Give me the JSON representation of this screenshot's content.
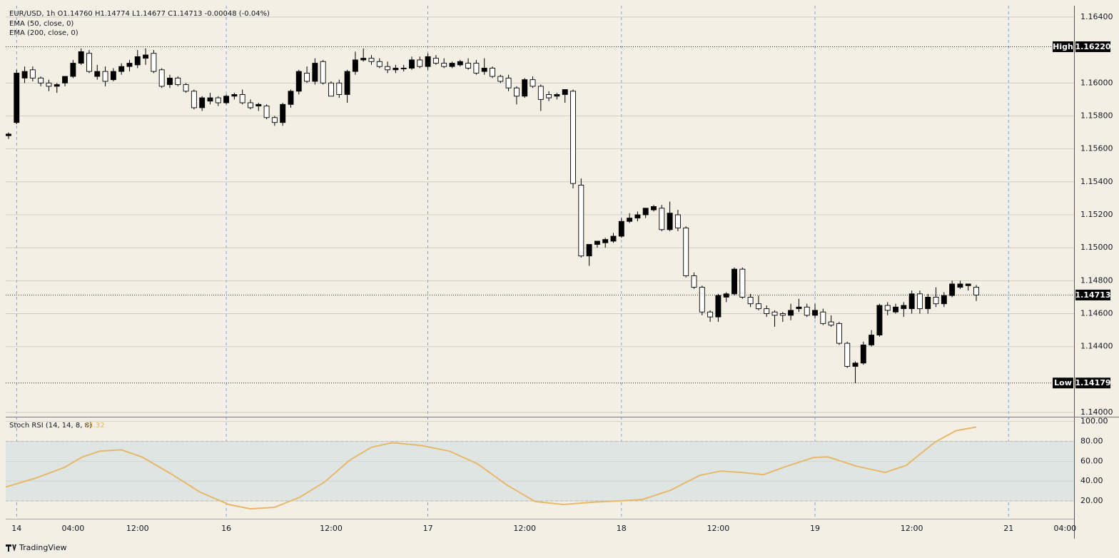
{
  "header": {
    "symbol_line": "EUR/USD, 1h  O1.14760  H1.14774  L1.14677  C1.14713  -0.00048 (-0.04%)",
    "indicators": [
      "EMA (50, close, 0)",
      "EMA (200, close, 0)"
    ]
  },
  "chart_data": [
    {
      "type": "candlestick",
      "open": [
        1.1568,
        1.1576,
        1.1603,
        1.1608,
        1.1603,
        1.16,
        1.1598,
        1.16,
        1.1604,
        1.1612,
        1.1618,
        1.1604,
        1.1607,
        1.1602,
        1.1607,
        1.161,
        1.1611,
        1.1615,
        1.1618,
        1.1608,
        1.1599,
        1.1603,
        1.1599,
        1.1595,
        1.1585,
        1.1589,
        1.1591,
        1.1588,
        1.1592,
        1.1593,
        1.1588,
        1.1586,
        1.1586,
        1.1579,
        1.1576,
        1.1587,
        1.1595,
        1.1606,
        1.1601,
        1.1613,
        1.16,
        1.16,
        1.1593,
        1.1607,
        1.1614,
        1.1615,
        1.1613,
        1.161,
        1.1608,
        1.1609,
        1.1609,
        1.1614,
        1.161,
        1.1615,
        1.1612,
        1.161,
        1.1611,
        1.1612,
        1.1612,
        1.1607,
        1.1609,
        1.1604,
        1.1603,
        1.1597,
        1.1592,
        1.1602,
        1.1598,
        1.1593,
        1.1592,
        1.1593,
        1.1595,
        1.1538,
        1.1495,
        1.1502,
        1.1503,
        1.1504,
        1.1507,
        1.1516,
        1.1518,
        1.152,
        1.1523,
        1.1524,
        1.1511,
        1.152,
        1.1512,
        1.1483,
        1.1476,
        1.1461,
        1.1458,
        1.147,
        1.1472,
        1.1487,
        1.147,
        1.1466,
        1.1463,
        1.1461,
        1.146,
        1.1459,
        1.1463,
        1.1464,
        1.1459,
        1.1461,
        1.1455,
        1.1454,
        1.1442,
        1.1428,
        1.143,
        1.1441,
        1.1447,
        1.1465,
        1.1461,
        1.1463,
        1.1463,
        1.1472,
        1.1463,
        1.147,
        1.1466,
        1.1471,
        1.1476,
        1.1477,
        1.1476
      ],
      "high": [
        1.157,
        1.1608,
        1.161,
        1.161,
        1.1604,
        1.1602,
        1.16,
        1.1603,
        1.1614,
        1.1621,
        1.162,
        1.1611,
        1.161,
        1.1609,
        1.1612,
        1.1614,
        1.162,
        1.1621,
        1.162,
        1.1609,
        1.1605,
        1.1604,
        1.16,
        1.1596,
        1.1592,
        1.1594,
        1.1592,
        1.1593,
        1.1594,
        1.1596,
        1.159,
        1.1588,
        1.1587,
        1.158,
        1.1588,
        1.1596,
        1.1608,
        1.161,
        1.1615,
        1.1614,
        1.1601,
        1.1602,
        1.1608,
        1.1619,
        1.1621,
        1.1617,
        1.1615,
        1.1613,
        1.1611,
        1.1611,
        1.1616,
        1.1616,
        1.1618,
        1.1617,
        1.1615,
        1.1613,
        1.1614,
        1.1615,
        1.1614,
        1.1615,
        1.161,
        1.1605,
        1.1605,
        1.1598,
        1.1603,
        1.1604,
        1.1599,
        1.1595,
        1.1594,
        1.1596,
        1.1596,
        1.1542,
        1.1502,
        1.1504,
        1.1506,
        1.1509,
        1.1518,
        1.1521,
        1.1522,
        1.1524,
        1.1526,
        1.1526,
        1.1528,
        1.1523,
        1.1513,
        1.1485,
        1.1477,
        1.1462,
        1.1472,
        1.1473,
        1.1488,
        1.1488,
        1.1472,
        1.1471,
        1.1465,
        1.1462,
        1.1461,
        1.1466,
        1.1469,
        1.1466,
        1.1466,
        1.1463,
        1.1459,
        1.1455,
        1.1443,
        1.1431,
        1.1443,
        1.145,
        1.1466,
        1.1467,
        1.1466,
        1.1467,
        1.1474,
        1.1474,
        1.1472,
        1.1476,
        1.1473,
        1.148,
        1.148,
        1.1478,
        1.14774
      ],
      "low": [
        1.1566,
        1.1575,
        1.16,
        1.1601,
        1.1598,
        1.1595,
        1.1594,
        1.1598,
        1.1603,
        1.1611,
        1.1606,
        1.1602,
        1.1598,
        1.1601,
        1.1605,
        1.1607,
        1.1609,
        1.1611,
        1.1606,
        1.1597,
        1.1597,
        1.1598,
        1.1594,
        1.1584,
        1.1583,
        1.1587,
        1.1586,
        1.1587,
        1.159,
        1.1587,
        1.1584,
        1.1583,
        1.1578,
        1.1574,
        1.1574,
        1.1585,
        1.1593,
        1.16,
        1.1599,
        1.1599,
        1.1592,
        1.1591,
        1.1588,
        1.1605,
        1.1613,
        1.1611,
        1.1609,
        1.1606,
        1.1606,
        1.1607,
        1.1608,
        1.1609,
        1.1608,
        1.1611,
        1.1609,
        1.1609,
        1.161,
        1.1608,
        1.1605,
        1.1605,
        1.1603,
        1.16,
        1.1595,
        1.1587,
        1.1591,
        1.1597,
        1.1583,
        1.1589,
        1.159,
        1.1588,
        1.1536,
        1.1494,
        1.1489,
        1.15,
        1.15,
        1.1503,
        1.1506,
        1.1515,
        1.1516,
        1.1518,
        1.1522,
        1.151,
        1.151,
        1.151,
        1.1482,
        1.1475,
        1.1459,
        1.1455,
        1.1455,
        1.1467,
        1.1471,
        1.1469,
        1.1464,
        1.1462,
        1.1458,
        1.1452,
        1.1455,
        1.1456,
        1.1461,
        1.1458,
        1.1457,
        1.1453,
        1.1452,
        1.1441,
        1.1427,
        1.14179,
        1.1429,
        1.144,
        1.1446,
        1.1459,
        1.146,
        1.1458,
        1.146,
        1.146,
        1.146,
        1.1464,
        1.1464,
        1.147,
        1.1475,
        1.1474,
        1.14677
      ],
      "close": [
        1.1569,
        1.1606,
        1.1607,
        1.1603,
        1.16,
        1.1598,
        1.1599,
        1.1604,
        1.1612,
        1.1619,
        1.1607,
        1.1607,
        1.1601,
        1.1607,
        1.161,
        1.1612,
        1.1616,
        1.1617,
        1.1607,
        1.1598,
        1.1603,
        1.1599,
        1.1595,
        1.1585,
        1.1591,
        1.1591,
        1.1588,
        1.1592,
        1.1593,
        1.1588,
        1.1585,
        1.1587,
        1.1579,
        1.1576,
        1.1587,
        1.1595,
        1.1607,
        1.1601,
        1.1612,
        1.16,
        1.1592,
        1.1593,
        1.1607,
        1.1614,
        1.1615,
        1.1613,
        1.161,
        1.1608,
        1.1609,
        1.1609,
        1.1614,
        1.161,
        1.1616,
        1.1612,
        1.161,
        1.1612,
        1.1613,
        1.1609,
        1.1606,
        1.1609,
        1.1604,
        1.1601,
        1.1597,
        1.1592,
        1.1602,
        1.1598,
        1.159,
        1.1591,
        1.1593,
        1.1596,
        1.1539,
        1.1495,
        1.1502,
        1.1504,
        1.1505,
        1.1507,
        1.1516,
        1.1518,
        1.152,
        1.1524,
        1.1525,
        1.1511,
        1.1521,
        1.1512,
        1.1483,
        1.1476,
        1.1461,
        1.1458,
        1.1471,
        1.1472,
        1.1487,
        1.147,
        1.1466,
        1.1463,
        1.146,
        1.1459,
        1.1459,
        1.1462,
        1.1464,
        1.1459,
        1.1462,
        1.1454,
        1.1453,
        1.1442,
        1.1428,
        1.143,
        1.1441,
        1.1447,
        1.1465,
        1.1462,
        1.1464,
        1.1465,
        1.1472,
        1.1463,
        1.147,
        1.1466,
        1.1471,
        1.1478,
        1.1478,
        1.1478,
        1.14713
      ],
      "up_color": "#000000",
      "down_color": "#ffffff",
      "xlim": [
        -0.35,
        132.12
      ],
      "xticks": [
        {
          "value": 1,
          "label": "14"
        },
        {
          "value": 8,
          "label": "04:00"
        },
        {
          "value": 16,
          "label": "12:00"
        },
        {
          "value": 27,
          "label": "16"
        },
        {
          "value": 40,
          "label": "12:00"
        },
        {
          "value": 52,
          "label": "17"
        },
        {
          "value": 64,
          "label": "12:00"
        },
        {
          "value": 76,
          "label": "18"
        },
        {
          "value": 88,
          "label": "12:00"
        },
        {
          "value": 100,
          "label": "19"
        },
        {
          "value": 112,
          "label": "12:00"
        },
        {
          "value": 124,
          "label": "21"
        },
        {
          "value": 131,
          "label": "04:00"
        }
      ],
      "ylim": [
        1.13983,
        1.16469
      ],
      "yticks": [
        {
          "value": 1.164,
          "label": "1.16400"
        },
        {
          "value": 1.16,
          "label": "1.16000"
        },
        {
          "value": 1.158,
          "label": "1.15800"
        },
        {
          "value": 1.156,
          "label": "1.15600"
        },
        {
          "value": 1.154,
          "label": "1.15400"
        },
        {
          "value": 1.152,
          "label": "1.15200"
        },
        {
          "value": 1.15,
          "label": "1.15000"
        },
        {
          "value": 1.148,
          "label": "1.14800"
        },
        {
          "value": 1.146,
          "label": "1.14600"
        },
        {
          "value": 1.144,
          "label": "1.14400"
        },
        {
          "value": 1.14,
          "label": "1.14000"
        }
      ],
      "markers": [
        {
          "label": "High",
          "value": 1.1622,
          "value_label": "1.16220"
        },
        {
          "label": "Low",
          "value": 1.14179,
          "value_label": "1.14179"
        },
        {
          "value": 1.14713,
          "value_label": "1.14713"
        }
      ]
    },
    {
      "type": "line",
      "title": "Stoch RSI (14, 14, 8, 8)",
      "color": "#e6b86a",
      "x": [
        -0.35,
        3.4,
        6.9,
        9.1,
        11.3,
        14,
        16.6,
        20.2,
        23.7,
        27.3,
        30,
        33,
        36.1,
        39.2,
        42.3,
        45,
        47.6,
        51.2,
        54.7,
        58.2,
        61.8,
        65.3,
        68.8,
        72.4,
        75.9,
        78.6,
        82.1,
        85.7,
        88.3,
        91,
        93.6,
        96.3,
        99.8,
        101.6,
        105.1,
        108.7,
        111.3,
        114.9,
        117.5,
        120
      ],
      "values": [
        34,
        43,
        53.6,
        64,
        70,
        71.4,
        64,
        47,
        29,
        16.4,
        12,
        13.6,
        23.6,
        39,
        61,
        74,
        78.6,
        75.7,
        70,
        57,
        36,
        19.3,
        16.4,
        18.6,
        20,
        21.4,
        30.7,
        45.7,
        50,
        48.6,
        46.4,
        54.3,
        63.6,
        64.3,
        55,
        48.6,
        55.7,
        79.3,
        90.7,
        94.32
      ],
      "ylim": [
        2,
        104
      ],
      "yticks": [
        {
          "value": 100,
          "label": "100.00"
        },
        {
          "value": 80,
          "label": "80.00"
        },
        {
          "value": 60,
          "label": "60.00"
        },
        {
          "value": 40,
          "label": "40.00"
        },
        {
          "value": 20,
          "label": "20.00"
        }
      ],
      "band": [
        20,
        80
      ],
      "band_color": "#dfe5e3"
    }
  ],
  "footer": "TradingView"
}
